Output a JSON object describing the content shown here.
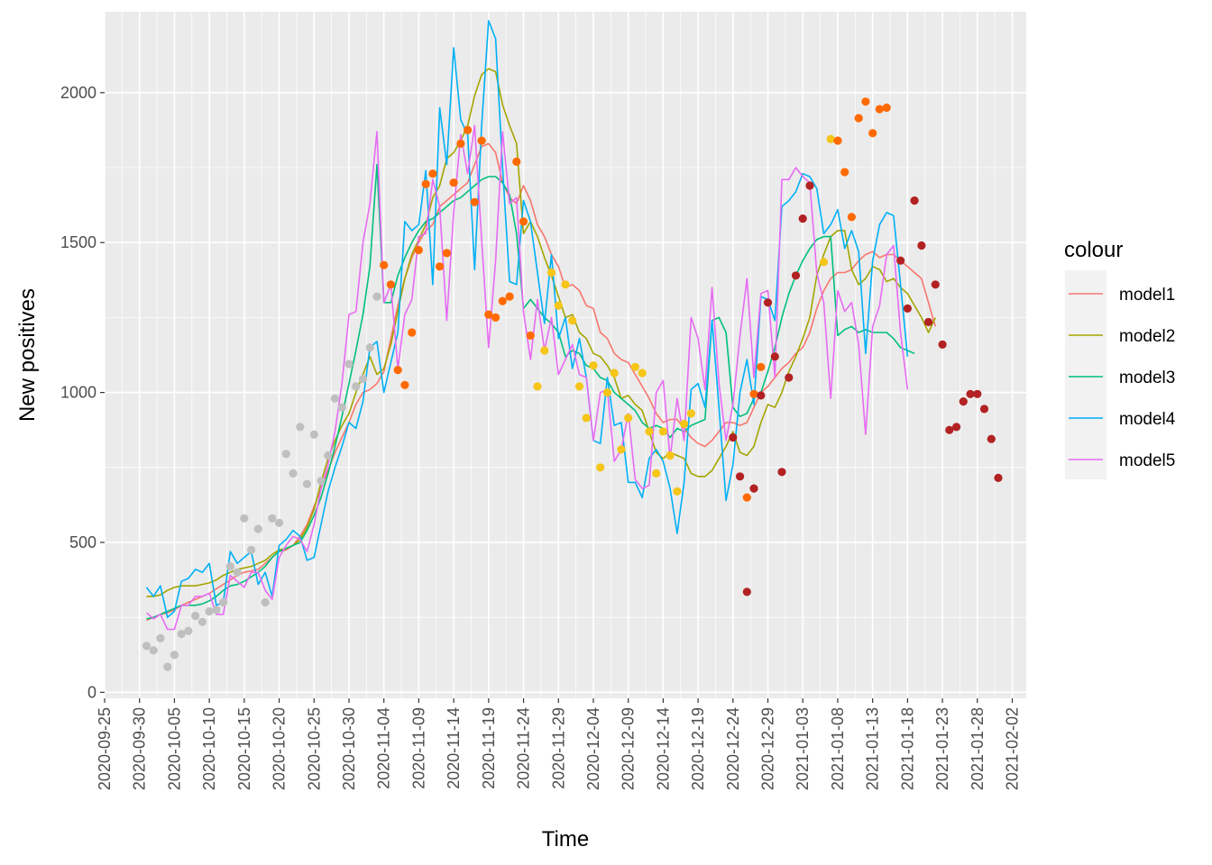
{
  "chart_data": {
    "type": "line",
    "xlabel": "Time",
    "ylabel": "New positives",
    "xlim": [
      "2020-09-25",
      "2021-02-04"
    ],
    "ylim": [
      -20,
      2270
    ],
    "x_ticks": [
      "2020-09-25",
      "2020-09-30",
      "2020-10-05",
      "2020-10-10",
      "2020-10-15",
      "2020-10-20",
      "2020-10-25",
      "2020-10-30",
      "2020-11-04",
      "2020-11-09",
      "2020-11-14",
      "2020-11-19",
      "2020-11-24",
      "2020-11-29",
      "2020-12-04",
      "2020-12-09",
      "2020-12-14",
      "2020-12-19",
      "2020-12-24",
      "2020-12-29",
      "2021-01-03",
      "2021-01-08",
      "2021-01-13",
      "2021-01-18",
      "2021-01-23",
      "2021-01-28",
      "2021-02-02"
    ],
    "y_ticks": [
      0,
      500,
      1000,
      1500,
      2000
    ],
    "legend_title": "colour",
    "legend_position": "right",
    "background": "#ebebeb",
    "grid": true,
    "series": [
      {
        "name": "model1",
        "color": "#F8766D",
        "start": "2020-10-01",
        "values": [
          240,
          250,
          260,
          265,
          275,
          290,
          300,
          310,
          320,
          330,
          345,
          360,
          375,
          390,
          400,
          405,
          410,
          430,
          450,
          470,
          475,
          490,
          520,
          560,
          620,
          680,
          740,
          800,
          850,
          900,
          960,
          1000,
          1010,
          1030,
          1070,
          1180,
          1290,
          1380,
          1450,
          1500,
          1540,
          1560,
          1620,
          1640,
          1660,
          1680,
          1700,
          1760,
          1820,
          1830,
          1800,
          1700,
          1650,
          1630,
          1690,
          1640,
          1560,
          1520,
          1460,
          1420,
          1350,
          1360,
          1340,
          1290,
          1280,
          1200,
          1180,
          1130,
          1110,
          1100,
          1060,
          1020,
          980,
          930,
          900,
          910,
          910,
          880,
          850,
          830,
          820,
          840,
          870,
          900,
          900,
          890,
          900,
          950,
          1000,
          1020,
          1050,
          1080,
          1100,
          1130,
          1150,
          1200,
          1280,
          1340,
          1380,
          1400,
          1400,
          1410,
          1440,
          1460,
          1470,
          1450,
          1460,
          1460,
          1440,
          1420,
          1400,
          1380,
          1300,
          1220
        ]
      },
      {
        "name": "model2",
        "color": "#A3A500",
        "start": "2020-10-01",
        "values": [
          320,
          320,
          325,
          340,
          350,
          355,
          355,
          355,
          360,
          365,
          375,
          390,
          400,
          410,
          415,
          420,
          430,
          440,
          460,
          475,
          480,
          490,
          510,
          550,
          610,
          700,
          780,
          840,
          890,
          930,
          1000,
          1060,
          1120,
          1060,
          1080,
          1160,
          1270,
          1380,
          1460,
          1510,
          1560,
          1650,
          1690,
          1780,
          1800,
          1840,
          1890,
          1990,
          2060,
          2080,
          2070,
          1960,
          1890,
          1830,
          1530,
          1570,
          1520,
          1450,
          1390,
          1320,
          1250,
          1260,
          1200,
          1180,
          1130,
          1120,
          1090,
          1050,
          980,
          990,
          960,
          940,
          870,
          800,
          780,
          800,
          790,
          780,
          730,
          720,
          720,
          740,
          780,
          820,
          870,
          800,
          790,
          820,
          900,
          960,
          950,
          1000,
          1070,
          1120,
          1180,
          1250,
          1390,
          1460,
          1520,
          1540,
          1540,
          1410,
          1360,
          1380,
          1420,
          1410,
          1370,
          1380,
          1350,
          1330,
          1290,
          1250,
          1200,
          1250
        ]
      },
      {
        "name": "model3",
        "color": "#00BF7D",
        "start": "2020-10-01",
        "values": [
          245,
          250,
          260,
          270,
          280,
          290,
          290,
          290,
          295,
          305,
          320,
          340,
          355,
          360,
          370,
          385,
          400,
          420,
          450,
          470,
          480,
          490,
          500,
          540,
          590,
          650,
          730,
          820,
          920,
          1030,
          1140,
          1260,
          1420,
          1760,
          1300,
          1300,
          1390,
          1450,
          1500,
          1540,
          1570,
          1580,
          1600,
          1620,
          1640,
          1650,
          1670,
          1690,
          1710,
          1720,
          1720,
          1700,
          1660,
          1530,
          1280,
          1310,
          1280,
          1250,
          1230,
          1200,
          1120,
          1140,
          1130,
          1090,
          1080,
          1050,
          1040,
          1000,
          980,
          960,
          940,
          900,
          880,
          890,
          880,
          850,
          880,
          870,
          890,
          900,
          910,
          1240,
          1250,
          1200,
          950,
          920,
          930,
          980,
          1000,
          1070,
          1150,
          1250,
          1330,
          1390,
          1440,
          1480,
          1510,
          1520,
          1520,
          1190,
          1210,
          1220,
          1200,
          1210,
          1200,
          1200,
          1200,
          1180,
          1150,
          1140,
          1130
        ]
      },
      {
        "name": "model4",
        "color": "#00B0F6",
        "start": "2020-10-01",
        "values": [
          350,
          320,
          355,
          250,
          270,
          370,
          380,
          410,
          400,
          430,
          290,
          300,
          470,
          430,
          450,
          470,
          360,
          400,
          320,
          490,
          510,
          540,
          520,
          440,
          450,
          560,
          670,
          750,
          820,
          900,
          880,
          970,
          1150,
          1170,
          1000,
          1100,
          1200,
          1570,
          1540,
          1560,
          1740,
          1360,
          1950,
          1760,
          2150,
          1910,
          1860,
          1410,
          1890,
          2240,
          2180,
          1750,
          1370,
          1360,
          1640,
          1570,
          1400,
          1230,
          1460,
          1180,
          1250,
          1080,
          1180,
          1050,
          840,
          830,
          1050,
          890,
          900,
          700,
          700,
          650,
          780,
          810,
          770,
          680,
          530,
          700,
          1010,
          1030,
          950,
          1240,
          950,
          640,
          760,
          1000,
          1110,
          960,
          1320,
          1310,
          1240,
          1620,
          1640,
          1670,
          1730,
          1720,
          1680,
          1530,
          1560,
          1610,
          1480,
          1540,
          1470,
          1130,
          1440,
          1560,
          1600,
          1590,
          1360,
          1120
        ]
      },
      {
        "name": "model5",
        "color": "#E76BF3",
        "start": "2020-10-01",
        "values": [
          265,
          245,
          260,
          210,
          210,
          290,
          290,
          320,
          320,
          330,
          260,
          260,
          390,
          370,
          350,
          400,
          400,
          340,
          310,
          450,
          490,
          520,
          510,
          470,
          560,
          680,
          760,
          870,
          1030,
          1260,
          1270,
          1500,
          1630,
          1870,
          1300,
          1360,
          1080,
          1260,
          1310,
          1520,
          1530,
          1710,
          1620,
          1240,
          1600,
          1860,
          1730,
          1890,
          1510,
          1150,
          1440,
          1870,
          1630,
          1650,
          1270,
          1110,
          1310,
          1140,
          1250,
          1060,
          1110,
          1160,
          1060,
          1050,
          840,
          1000,
          1010,
          770,
          810,
          930,
          710,
          680,
          690,
          1000,
          1040,
          780,
          980,
          840,
          1250,
          1180,
          1010,
          1350,
          1030,
          840,
          960,
          1190,
          1380,
          1050,
          1330,
          1340,
          1050,
          1710,
          1710,
          1750,
          1720,
          1700,
          1400,
          1300,
          980,
          1340,
          1270,
          1300,
          1160,
          860,
          1220,
          1290,
          1460,
          1490,
          1200,
          1010
        ]
      }
    ],
    "observed_points": [
      {
        "color": "#BFBFBF",
        "start": "2020-10-01",
        "values": [
          155,
          140,
          180,
          85,
          125,
          195,
          205,
          255,
          235,
          270,
          275,
          300,
          420,
          400,
          580,
          475,
          545,
          300,
          580,
          565,
          795,
          730,
          885,
          695,
          860,
          705,
          790,
          980,
          950,
          1095,
          1020,
          1045,
          1150,
          1320
        ]
      },
      {
        "color": "#FF6A00",
        "start": "2020-11-04",
        "values": [
          1425,
          1360,
          1075,
          1025,
          1200,
          1475,
          1695,
          1730,
          1420,
          1465,
          1700,
          1830,
          1875,
          1635,
          1840,
          1260,
          1250,
          1305,
          1320,
          1770,
          1570,
          1190
        ]
      },
      {
        "color": "#F5C518",
        "start": "2020-11-26",
        "values": [
          1020,
          1140,
          1400,
          1290,
          1360,
          1240,
          1020,
          915,
          1090,
          750,
          1000,
          1065,
          810,
          915,
          1085,
          1065,
          870,
          730,
          870,
          790,
          670,
          895,
          930
        ]
      },
      {
        "color": "#FF6A00",
        "start": "2020-12-26",
        "values": [
          650,
          995,
          1085
        ]
      },
      {
        "color": "#B22222",
        "start": "2020-12-24",
        "values": [
          850,
          720,
          335,
          680,
          990,
          1300,
          1120,
          735,
          1050,
          1390,
          1580,
          1690
        ]
      },
      {
        "color": "#F5C518",
        "start": "2021-01-06",
        "values": [
          1435,
          1845
        ]
      },
      {
        "color": "#FF6A00",
        "start": "2021-01-08",
        "values": [
          1840,
          1735,
          1585,
          1915,
          1970,
          1865,
          1945,
          1950
        ]
      },
      {
        "color": "#B22222",
        "start": "2021-01-17",
        "values": [
          1440,
          1280,
          1640,
          1490,
          1235,
          1360,
          1160,
          875,
          885,
          970,
          995,
          995,
          945,
          845,
          715
        ]
      }
    ]
  }
}
